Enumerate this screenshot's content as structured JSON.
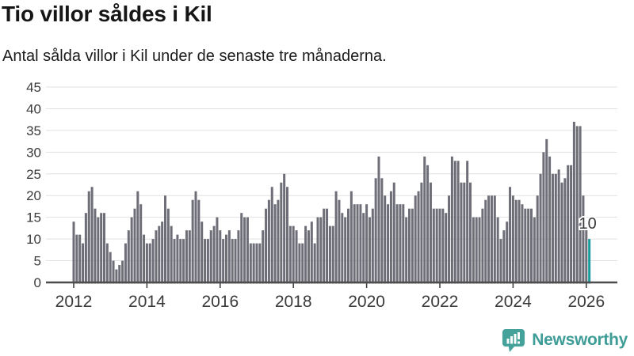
{
  "header": {
    "title": "Tio villor såldes i Kil",
    "subtitle": "Antal sålda villor i Kil under de senaste tre månaderna."
  },
  "branding": {
    "name": "Newsworthy",
    "icon": "newsworthy-chart-bubble-icon",
    "icon_color": "#44a29b",
    "text_color": "#3f9d97"
  },
  "annotation": {
    "last_value_label": "10"
  },
  "colors": {
    "bar": "#6e6e78",
    "highlight": "#1a9b9e",
    "axis_line": "#4d4d4d",
    "gridline": "#e0e0e0",
    "tick_text": "#3a3a3a"
  },
  "chart_data": {
    "type": "bar",
    "title": "Tio villor såldes i Kil",
    "subtitle": "Antal sålda villor i Kil under de senaste tre månaderna.",
    "x_start": "2012-01",
    "x_end": "2026-02",
    "frequency": "monthly",
    "ylim": [
      0,
      45
    ],
    "y_ticks": [
      0,
      5,
      10,
      15,
      20,
      25,
      30,
      35,
      40,
      45
    ],
    "x_tick_years": [
      2012,
      2014,
      2016,
      2018,
      2020,
      2022,
      2024,
      2026
    ],
    "grid": true,
    "legend": false,
    "highlight": {
      "index": 169,
      "value": 10,
      "label": "10"
    },
    "values": [
      14,
      11,
      11,
      9,
      16,
      21,
      22,
      17,
      15,
      16,
      16,
      9,
      7,
      5,
      3,
      4,
      5,
      9,
      12,
      15,
      17,
      21,
      18,
      11,
      9,
      9,
      10,
      12,
      13,
      14,
      20,
      17,
      13,
      10,
      11,
      10,
      10,
      12,
      12,
      19,
      21,
      19,
      14,
      10,
      10,
      12,
      13,
      15,
      12,
      10,
      11,
      12,
      10,
      10,
      12,
      16,
      15,
      15,
      9,
      9,
      9,
      9,
      12,
      17,
      19,
      22,
      18,
      19,
      23,
      25,
      22,
      13,
      13,
      12,
      9,
      9,
      13,
      12,
      14,
      9,
      15,
      15,
      17,
      17,
      13,
      13,
      21,
      19,
      16,
      15,
      17,
      21,
      18,
      18,
      18,
      16,
      18,
      15,
      17,
      24,
      29,
      24,
      20,
      18,
      21,
      23,
      18,
      18,
      18,
      15,
      17,
      17,
      20,
      21,
      23,
      29,
      27,
      23,
      17,
      17,
      17,
      17,
      16,
      20,
      29,
      28,
      28,
      23,
      23,
      28,
      23,
      15,
      15,
      15,
      17,
      19,
      20,
      20,
      20,
      15,
      10,
      12,
      14,
      22,
      20,
      19,
      19,
      18,
      17,
      17,
      17,
      15,
      20,
      25,
      30,
      33,
      29,
      25,
      25,
      26,
      23,
      24,
      27,
      27,
      37,
      36,
      36,
      20,
      13,
      10
    ]
  }
}
